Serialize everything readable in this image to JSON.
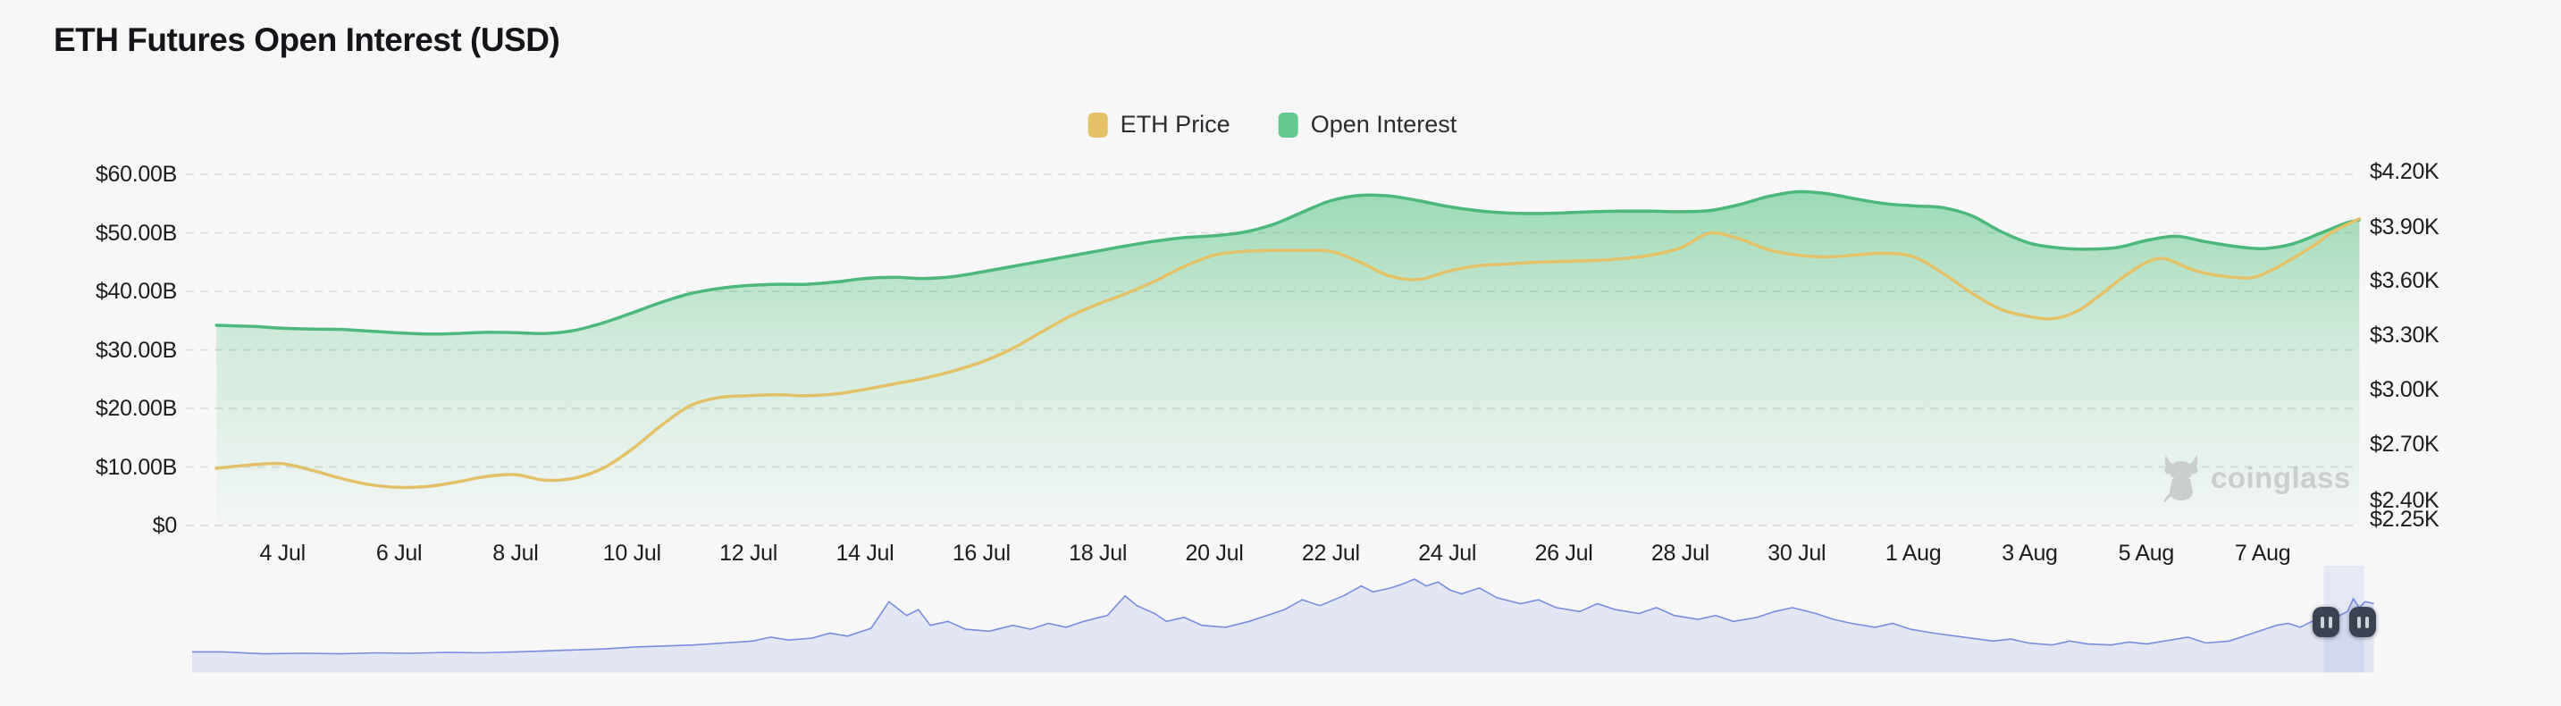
{
  "header": {
    "title": "ETH Futures Open Interest (USD)"
  },
  "legend": {
    "items": [
      {
        "label": "ETH Price",
        "color": "#e4c167"
      },
      {
        "label": "Open Interest",
        "color": "#63c98f"
      }
    ]
  },
  "watermark": {
    "text": "coinglass",
    "icon": "coinglass-bull-icon"
  },
  "colors": {
    "background": "#f7f7f8",
    "grid_dash": "rgba(60,78,70,0.13)",
    "green_line": "#4cb87c",
    "green_fill_top": "#8fd6ab",
    "yellow_line": "#e4c167",
    "nav_fill": "rgba(95,118,213,0.13)",
    "nav_line": "#5b74d8",
    "nav_window_fill": "rgba(100,125,220,0.13)",
    "handle_bg": "#3b4252",
    "handle_bars": "#ced2da"
  },
  "chart_data": {
    "type": "area",
    "title": "ETH Futures Open Interest (USD)",
    "grid": "dashed horizontal",
    "legend_position": "top-center",
    "x_axis": {
      "tick_labels": [
        "4 Jul",
        "6 Jul",
        "8 Jul",
        "10 Jul",
        "12 Jul",
        "14 Jul",
        "16 Jul",
        "18 Jul",
        "20 Jul",
        "22 Jul",
        "24 Jul",
        "26 Jul",
        "28 Jul",
        "30 Jul",
        "1 Aug",
        "3 Aug",
        "5 Aug",
        "7 Aug"
      ],
      "unit": "date (day, month)",
      "domain_days_from_jul3": [
        -0.13,
        36.65
      ]
    },
    "left_axis": {
      "series": "Open Interest",
      "tick_labels": [
        "$60.00B",
        "$50.00B",
        "$40.00B",
        "$30.00B",
        "$20.00B",
        "$10.00B",
        "$0"
      ],
      "range_billions_usd": [
        0,
        60
      ]
    },
    "right_axis": {
      "series": "ETH Price",
      "tick_labels": [
        "$4.20K",
        "$3.90K",
        "$3.60K",
        "$3.30K",
        "$3.00K",
        "$2.70K",
        "$2.40K",
        "$2.25K"
      ],
      "range_thousands_usd": [
        2.25,
        4.2
      ]
    },
    "series": [
      {
        "name": "ETH Price",
        "axis": "right",
        "style": "line",
        "color": "#e4c167",
        "unit": "USD thousands",
        "points": [
          [
            -0.13,
            2.565
          ],
          [
            0.5,
            2.585
          ],
          [
            1,
            2.59
          ],
          [
            1.5,
            2.555
          ],
          [
            2,
            2.51
          ],
          [
            2.5,
            2.475
          ],
          [
            3,
            2.46
          ],
          [
            3.5,
            2.465
          ],
          [
            4,
            2.49
          ],
          [
            4.5,
            2.52
          ],
          [
            5,
            2.53
          ],
          [
            5.5,
            2.5
          ],
          [
            6,
            2.51
          ],
          [
            6.5,
            2.565
          ],
          [
            7,
            2.67
          ],
          [
            7.5,
            2.8
          ],
          [
            8,
            2.91
          ],
          [
            8.5,
            2.955
          ],
          [
            9,
            2.965
          ],
          [
            9.5,
            2.97
          ],
          [
            10,
            2.965
          ],
          [
            10.5,
            2.975
          ],
          [
            11,
            3.0
          ],
          [
            11.5,
            3.03
          ],
          [
            12,
            3.06
          ],
          [
            12.5,
            3.1
          ],
          [
            13,
            3.15
          ],
          [
            13.5,
            3.22
          ],
          [
            14,
            3.31
          ],
          [
            14.5,
            3.4
          ],
          [
            15,
            3.47
          ],
          [
            15.5,
            3.53
          ],
          [
            16,
            3.6
          ],
          [
            16.5,
            3.68
          ],
          [
            17,
            3.74
          ],
          [
            17.5,
            3.76
          ],
          [
            18,
            3.765
          ],
          [
            18.5,
            3.765
          ],
          [
            19,
            3.76
          ],
          [
            19.5,
            3.7
          ],
          [
            20,
            3.625
          ],
          [
            20.5,
            3.605
          ],
          [
            21,
            3.65
          ],
          [
            21.5,
            3.68
          ],
          [
            22,
            3.69
          ],
          [
            22.5,
            3.7
          ],
          [
            23,
            3.705
          ],
          [
            23.5,
            3.71
          ],
          [
            24,
            3.72
          ],
          [
            24.5,
            3.74
          ],
          [
            25,
            3.78
          ],
          [
            25.5,
            3.86
          ],
          [
            26,
            3.83
          ],
          [
            26.5,
            3.77
          ],
          [
            27,
            3.74
          ],
          [
            27.5,
            3.73
          ],
          [
            28,
            3.74
          ],
          [
            28.5,
            3.75
          ],
          [
            29,
            3.73
          ],
          [
            29.5,
            3.64
          ],
          [
            30,
            3.53
          ],
          [
            30.5,
            3.44
          ],
          [
            31,
            3.4
          ],
          [
            31.4,
            3.39
          ],
          [
            31.8,
            3.43
          ],
          [
            32.2,
            3.52
          ],
          [
            32.6,
            3.62
          ],
          [
            33,
            3.7
          ],
          [
            33.3,
            3.72
          ],
          [
            33.7,
            3.67
          ],
          [
            34,
            3.64
          ],
          [
            34.4,
            3.62
          ],
          [
            34.8,
            3.615
          ],
          [
            35.1,
            3.65
          ],
          [
            35.5,
            3.72
          ],
          [
            35.9,
            3.8
          ],
          [
            36.2,
            3.87
          ],
          [
            36.65,
            3.94
          ]
        ]
      },
      {
        "name": "Open Interest",
        "axis": "left",
        "style": "area",
        "color": "#4cb87c",
        "unit": "USD billions",
        "points": [
          [
            -0.13,
            34.2
          ],
          [
            0.5,
            34.0
          ],
          [
            1,
            33.7
          ],
          [
            1.5,
            33.55
          ],
          [
            2,
            33.5
          ],
          [
            2.5,
            33.2
          ],
          [
            3,
            32.9
          ],
          [
            3.5,
            32.7
          ],
          [
            4,
            32.8
          ],
          [
            4.5,
            33.0
          ],
          [
            5,
            32.95
          ],
          [
            5.5,
            32.8
          ],
          [
            6,
            33.3
          ],
          [
            6.5,
            34.6
          ],
          [
            7,
            36.3
          ],
          [
            7.5,
            38.1
          ],
          [
            8,
            39.6
          ],
          [
            8.5,
            40.5
          ],
          [
            9,
            41.0
          ],
          [
            9.5,
            41.2
          ],
          [
            10,
            41.2
          ],
          [
            10.5,
            41.6
          ],
          [
            11,
            42.2
          ],
          [
            11.5,
            42.4
          ],
          [
            12,
            42.2
          ],
          [
            12.5,
            42.5
          ],
          [
            13,
            43.3
          ],
          [
            13.5,
            44.2
          ],
          [
            14,
            45.1
          ],
          [
            14.5,
            46.0
          ],
          [
            15,
            46.9
          ],
          [
            15.5,
            47.8
          ],
          [
            16,
            48.6
          ],
          [
            16.5,
            49.2
          ],
          [
            17,
            49.5
          ],
          [
            17.5,
            50.1
          ],
          [
            18,
            51.4
          ],
          [
            18.5,
            53.5
          ],
          [
            19,
            55.5
          ],
          [
            19.5,
            56.4
          ],
          [
            20,
            56.3
          ],
          [
            20.5,
            55.5
          ],
          [
            21,
            54.5
          ],
          [
            21.5,
            53.8
          ],
          [
            22,
            53.4
          ],
          [
            22.5,
            53.3
          ],
          [
            23,
            53.4
          ],
          [
            23.5,
            53.6
          ],
          [
            24,
            53.7
          ],
          [
            24.5,
            53.7
          ],
          [
            25,
            53.6
          ],
          [
            25.5,
            53.8
          ],
          [
            26,
            54.8
          ],
          [
            26.5,
            56.2
          ],
          [
            27,
            57.0
          ],
          [
            27.5,
            56.7
          ],
          [
            28,
            55.8
          ],
          [
            28.5,
            55.0
          ],
          [
            29,
            54.6
          ],
          [
            29.5,
            54.3
          ],
          [
            30,
            52.9
          ],
          [
            30.5,
            50.2
          ],
          [
            31,
            48.2
          ],
          [
            31.5,
            47.4
          ],
          [
            32,
            47.2
          ],
          [
            32.5,
            47.5
          ],
          [
            33,
            48.7
          ],
          [
            33.5,
            49.4
          ],
          [
            34,
            48.5
          ],
          [
            34.5,
            47.7
          ],
          [
            35,
            47.3
          ],
          [
            35.5,
            48.1
          ],
          [
            36,
            50.0
          ],
          [
            36.4,
            51.6
          ],
          [
            36.65,
            52.2
          ]
        ]
      }
    ],
    "navigator": {
      "description": "mini overview strip below x axis",
      "selected_window_days": [
        35.6,
        36.28
      ],
      "handles": 2,
      "points": [
        [
          -0.5,
          21
        ],
        [
          0,
          21
        ],
        [
          0.7,
          19
        ],
        [
          1.4,
          19.5
        ],
        [
          2,
          19
        ],
        [
          2.6,
          20
        ],
        [
          3.2,
          19.5
        ],
        [
          3.8,
          20.5
        ],
        [
          4.4,
          20
        ],
        [
          5,
          21
        ],
        [
          5.5,
          22
        ],
        [
          6,
          23
        ],
        [
          6.5,
          24
        ],
        [
          7,
          26
        ],
        [
          7.5,
          27
        ],
        [
          8,
          28
        ],
        [
          8.5,
          30
        ],
        [
          9,
          32
        ],
        [
          9.3,
          36
        ],
        [
          9.6,
          33
        ],
        [
          10,
          35
        ],
        [
          10.3,
          40
        ],
        [
          10.6,
          37
        ],
        [
          11,
          45
        ],
        [
          11.3,
          72
        ],
        [
          11.6,
          58
        ],
        [
          11.8,
          64
        ],
        [
          12,
          48
        ],
        [
          12.3,
          52
        ],
        [
          12.6,
          44
        ],
        [
          13,
          42
        ],
        [
          13.4,
          48
        ],
        [
          13.7,
          44
        ],
        [
          14,
          50
        ],
        [
          14.3,
          46
        ],
        [
          14.6,
          52
        ],
        [
          15,
          58
        ],
        [
          15.3,
          78
        ],
        [
          15.5,
          68
        ],
        [
          15.8,
          60
        ],
        [
          16,
          52
        ],
        [
          16.3,
          56
        ],
        [
          16.6,
          48
        ],
        [
          17,
          46
        ],
        [
          17.4,
          52
        ],
        [
          17.7,
          58
        ],
        [
          18,
          64
        ],
        [
          18.3,
          74
        ],
        [
          18.6,
          68
        ],
        [
          19,
          78
        ],
        [
          19.3,
          88
        ],
        [
          19.5,
          82
        ],
        [
          19.8,
          86
        ],
        [
          20,
          90
        ],
        [
          20.2,
          95
        ],
        [
          20.4,
          88
        ],
        [
          20.6,
          92
        ],
        [
          20.8,
          84
        ],
        [
          21,
          80
        ],
        [
          21.3,
          86
        ],
        [
          21.6,
          76
        ],
        [
          22,
          70
        ],
        [
          22.3,
          74
        ],
        [
          22.6,
          66
        ],
        [
          23,
          62
        ],
        [
          23.3,
          70
        ],
        [
          23.6,
          64
        ],
        [
          24,
          60
        ],
        [
          24.3,
          66
        ],
        [
          24.6,
          58
        ],
        [
          25,
          54
        ],
        [
          25.3,
          58
        ],
        [
          25.6,
          52
        ],
        [
          26,
          56
        ],
        [
          26.3,
          62
        ],
        [
          26.6,
          66
        ],
        [
          27,
          60
        ],
        [
          27.3,
          54
        ],
        [
          27.6,
          50
        ],
        [
          28,
          46
        ],
        [
          28.3,
          50
        ],
        [
          28.6,
          44
        ],
        [
          29,
          40
        ],
        [
          29.5,
          36
        ],
        [
          30,
          32
        ],
        [
          30.3,
          34
        ],
        [
          30.6,
          30
        ],
        [
          31,
          28
        ],
        [
          31.3,
          32
        ],
        [
          31.6,
          29
        ],
        [
          32,
          28
        ],
        [
          32.3,
          31
        ],
        [
          32.6,
          29
        ],
        [
          33,
          33
        ],
        [
          33.3,
          36
        ],
        [
          33.6,
          30
        ],
        [
          34,
          32
        ],
        [
          34.3,
          38
        ],
        [
          34.6,
          44
        ],
        [
          34.8,
          48
        ],
        [
          35,
          50
        ],
        [
          35.2,
          46
        ],
        [
          35.4,
          52
        ],
        [
          35.6,
          50
        ],
        [
          35.8,
          56
        ],
        [
          36,
          62
        ],
        [
          36.1,
          75
        ],
        [
          36.2,
          66
        ],
        [
          36.3,
          72
        ],
        [
          36.45,
          70
        ]
      ]
    }
  }
}
